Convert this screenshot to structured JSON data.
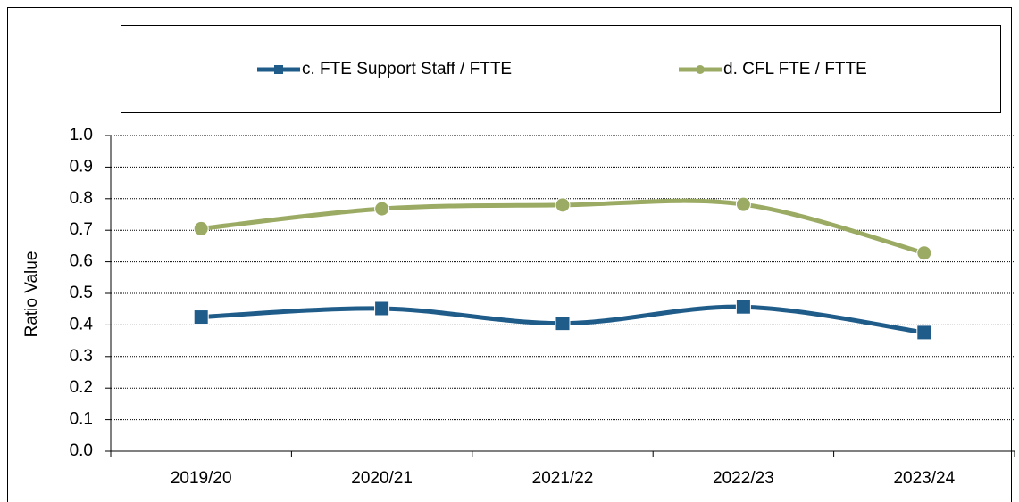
{
  "chart_data": {
    "type": "line",
    "y_label": "Ratio Value",
    "categories": [
      "2019/20",
      "2020/21",
      "2021/22",
      "2022/23",
      "2023/24"
    ],
    "series": [
      {
        "name": "c. FTE Support Staff / FTTE",
        "color": "#1f5c8a",
        "marker": "square",
        "values": [
          0.425,
          0.452,
          0.405,
          0.457,
          0.376
        ]
      },
      {
        "name": "d. CFL FTE / FTTE",
        "color": "#9bab64",
        "marker": "circle",
        "values": [
          0.705,
          0.768,
          0.78,
          0.782,
          0.628
        ]
      }
    ],
    "ylim": [
      0,
      1
    ],
    "yticks": [
      {
        "value": 0,
        "label": "0.0"
      },
      0.1,
      0.2,
      0.3,
      0.4,
      0.5,
      0.6,
      0.7,
      0.8,
      0.9,
      {
        "value": 1,
        "label": "1.0"
      }
    ],
    "grid": true,
    "smooth": true,
    "legend": "top"
  }
}
